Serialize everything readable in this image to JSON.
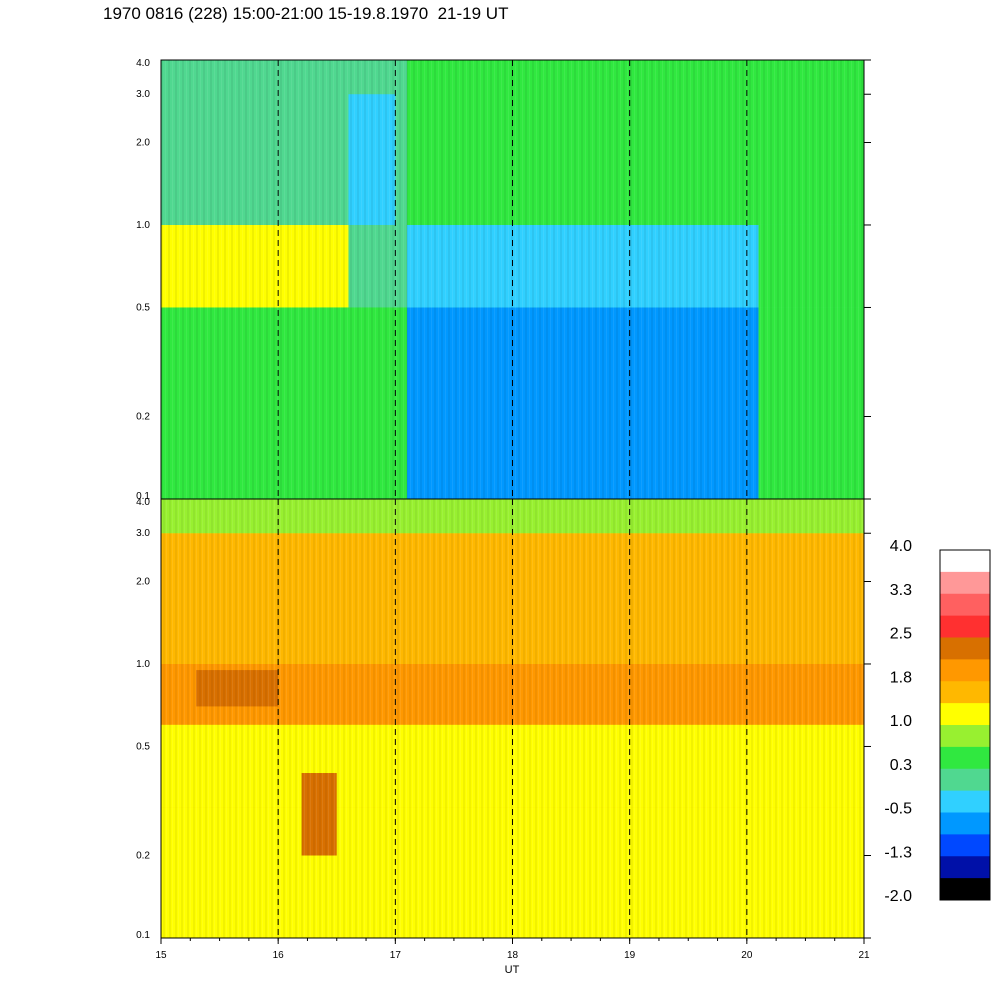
{
  "title": "1970 0816 (228) 15:00-21:00 15-19.8.1970  21-19 UT",
  "colors": {
    "background": "#ffffff",
    "axes": "#000000",
    "colorbar": [
      "#000000",
      "#0010a8",
      "#0048ff",
      "#0098ff",
      "#30d0ff",
      "#50d890",
      "#30e840",
      "#98f030",
      "#ffff00",
      "#ffb800",
      "#ff9800",
      "#d87000",
      "#ff3030",
      "#ff6060",
      "#ff9898",
      "#ffffff"
    ]
  },
  "chart_data": [
    {
      "type": "heatmap",
      "panel": "top",
      "xlim": [
        15,
        21
      ],
      "ylim": [
        0.1,
        4.0
      ],
      "yscale": "log",
      "yticks": [
        "0.1",
        "0.2",
        "0.5",
        "1.0",
        "2.0",
        "3.0",
        "4.0"
      ],
      "xticks": [
        "15",
        "16",
        "17",
        "18",
        "19",
        "20",
        "21"
      ],
      "vertical_markers": [
        16,
        17,
        18,
        19,
        20
      ],
      "regions": [
        {
          "x": [
            15.0,
            16.3
          ],
          "y": [
            0.1,
            0.5
          ],
          "level": 0.3
        },
        {
          "x": [
            15.0,
            16.6
          ],
          "y": [
            0.5,
            1.0
          ],
          "level": 1.0
        },
        {
          "x": [
            16.3,
            17.1
          ],
          "y": [
            0.1,
            0.5
          ],
          "level": 0.6
        },
        {
          "x": [
            15.0,
            17.1
          ],
          "y": [
            1.0,
            4.0
          ],
          "level": 0.2
        },
        {
          "x": [
            16.6,
            17.0
          ],
          "y": [
            1.0,
            3.0
          ],
          "level": -0.5
        },
        {
          "x": [
            17.1,
            20.1
          ],
          "y": [
            0.1,
            0.5
          ],
          "level": -0.6
        },
        {
          "x": [
            17.1,
            20.1
          ],
          "y": [
            0.5,
            1.0
          ],
          "level": -0.2
        },
        {
          "x": [
            17.1,
            21.0
          ],
          "y": [
            1.0,
            4.0
          ],
          "level": 0.3
        },
        {
          "x": [
            20.1,
            21.0
          ],
          "y": [
            0.1,
            0.5
          ],
          "level": 0.3
        },
        {
          "x": [
            20.1,
            21.0
          ],
          "y": [
            0.5,
            1.0
          ],
          "level": 0.6
        }
      ]
    },
    {
      "type": "heatmap",
      "panel": "bottom",
      "xlim": [
        15,
        21
      ],
      "ylim": [
        0.1,
        4.0
      ],
      "yscale": "log",
      "yticks": [
        "0.1",
        "0.2",
        "0.5",
        "1.0",
        "2.0",
        "3.0",
        "4.0"
      ],
      "xticks": [
        "15",
        "16",
        "17",
        "18",
        "19",
        "20",
        "21"
      ],
      "xlabel": "UT",
      "vertical_markers": [
        16,
        17,
        18,
        19,
        20
      ],
      "regions": [
        {
          "x": [
            15.0,
            21.0
          ],
          "y": [
            0.1,
            0.3
          ],
          "level": 1.0
        },
        {
          "x": [
            15.0,
            21.0
          ],
          "y": [
            0.3,
            0.6
          ],
          "level": 1.2
        },
        {
          "x": [
            15.0,
            21.0
          ],
          "y": [
            0.6,
            1.0
          ],
          "level": 1.8
        },
        {
          "x": [
            15.3,
            16.0
          ],
          "y": [
            0.7,
            0.95
          ],
          "level": 2.3
        },
        {
          "x": [
            20.4,
            21.0
          ],
          "y": [
            0.9,
            1.1
          ],
          "level": 1.9
        },
        {
          "x": [
            16.2,
            16.5
          ],
          "y": [
            0.2,
            0.4
          ],
          "level": 2.2
        },
        {
          "x": [
            15.0,
            21.0
          ],
          "y": [
            1.0,
            3.0
          ],
          "level": 1.5
        },
        {
          "x": [
            15.0,
            21.0
          ],
          "y": [
            3.0,
            4.0
          ],
          "level": 0.8
        }
      ]
    }
  ],
  "colorbar": {
    "labels": [
      "4.0",
      "3.3",
      "2.5",
      "1.8",
      "1.0",
      "0.3",
      "-0.5",
      "-1.3",
      "-2.0"
    ],
    "min": -2.0,
    "max": 4.0
  }
}
